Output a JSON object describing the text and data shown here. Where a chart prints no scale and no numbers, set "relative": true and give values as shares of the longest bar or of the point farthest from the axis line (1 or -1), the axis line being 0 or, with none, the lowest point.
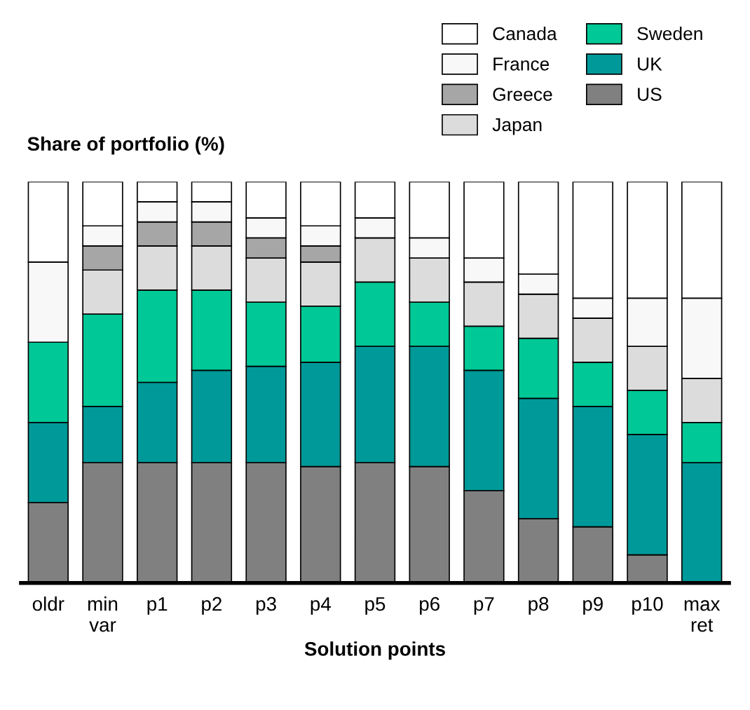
{
  "chart_data": {
    "type": "bar",
    "stacked": true,
    "relative": true,
    "ylabel": "Share of portfolio (%)",
    "xlabel": "Solution points",
    "legend": "top right",
    "grid": false,
    "categories": [
      "oldr",
      "min\nvar",
      "p1",
      "p2",
      "p3",
      "p4",
      "p5",
      "p6",
      "p7",
      "p8",
      "p9",
      "p10",
      "max\nret"
    ],
    "series": [
      {
        "name": "US",
        "color": "#808080",
        "values": [
          0.2,
          0.3,
          0.3,
          0.3,
          0.3,
          0.29,
          0.3,
          0.29,
          0.23,
          0.16,
          0.14,
          0.07,
          0
        ]
      },
      {
        "name": "UK",
        "color": "#009999",
        "values": [
          0.2,
          0.14,
          0.2,
          0.23,
          0.24,
          0.26,
          0.29,
          0.3,
          0.3,
          0.3,
          0.3,
          0.3,
          0.3
        ]
      },
      {
        "name": "Sweden",
        "color": "#00c896",
        "values": [
          0.2,
          0.23,
          0.23,
          0.2,
          0.16,
          0.14,
          0.16,
          0.11,
          0.11,
          0.15,
          0.11,
          0.11,
          0.1
        ]
      },
      {
        "name": "Japan",
        "color": "#dcdcdc",
        "values": [
          0,
          0.11,
          0.11,
          0.11,
          0.11,
          0.11,
          0.11,
          0.11,
          0.11,
          0.11,
          0.11,
          0.11,
          0.11
        ]
      },
      {
        "name": "Greece",
        "color": "#a6a6a6",
        "values": [
          0,
          0.06,
          0.06,
          0.06,
          0.05,
          0.04,
          0,
          0,
          0,
          0,
          0,
          0,
          0
        ]
      },
      {
        "name": "France",
        "color": "#f8f8f8",
        "values": [
          0.2,
          0.05,
          0.05,
          0.05,
          0.05,
          0.05,
          0.05,
          0.05,
          0.06,
          0.05,
          0.05,
          0.12,
          0.2
        ]
      },
      {
        "name": "Canada",
        "color": "#ffffff",
        "values": [
          0.2,
          0.11,
          0.05,
          0.05,
          0.09,
          0.11,
          0.09,
          0.14,
          0.19,
          0.23,
          0.29,
          0.29,
          0.29
        ]
      }
    ]
  }
}
